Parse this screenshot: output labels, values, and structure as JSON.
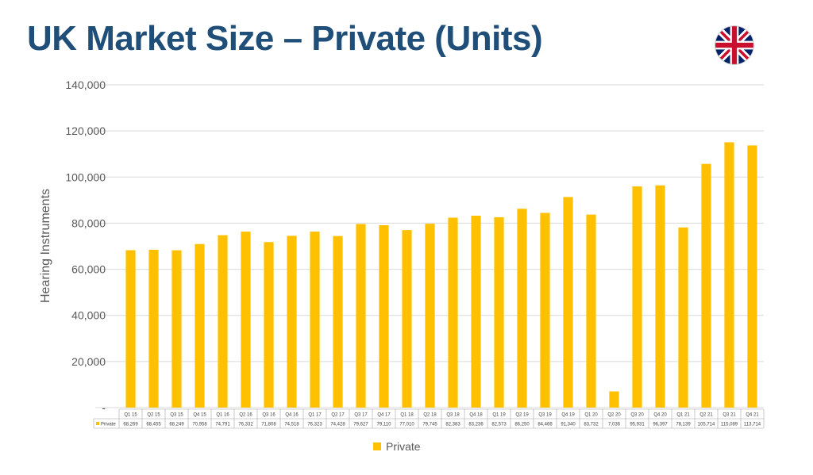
{
  "page": {
    "title": "UK Market Size – Private (Units)"
  },
  "colors": {
    "bar": "#ffc000",
    "grid": "#d9d9d9",
    "title": "#1f4e79"
  },
  "icons": {
    "flag": "uk-flag-icon"
  },
  "chart_data": {
    "type": "bar",
    "title": "UK Market Size – Private (Units)",
    "ylabel": "Hearing Instruments",
    "xlabel": "",
    "ylim": [
      0,
      140000
    ],
    "yticks": [
      0,
      20000,
      40000,
      60000,
      80000,
      100000,
      120000,
      140000
    ],
    "ytick_labels": [
      "-",
      "20,000",
      "40,000",
      "60,000",
      "80,000",
      "100,000",
      "120,000",
      "140,000"
    ],
    "grid": true,
    "legend_position": "bottom",
    "categories": [
      "Q1 15",
      "Q2 15",
      "Q3 15",
      "Q4 15",
      "Q1 16",
      "Q2 16",
      "Q3 16",
      "Q4 16",
      "Q1 17",
      "Q2 17",
      "Q3 17",
      "Q4 17",
      "Q1 18",
      "Q2 18",
      "Q3 18",
      "Q4 18",
      "Q1 19",
      "Q2 19",
      "Q3 19",
      "Q4 19",
      "Q1 20",
      "Q2 20",
      "Q3 20",
      "Q4 20",
      "Q1 21",
      "Q2 21",
      "Q3 21",
      "Q4 21"
    ],
    "series": [
      {
        "name": "Private",
        "values": [
          68269,
          68455,
          68249,
          70958,
          74791,
          76332,
          71808,
          74518,
          76323,
          74428,
          79627,
          79110,
          77010,
          79745,
          82383,
          83236,
          82573,
          86250,
          84466,
          91340,
          83732,
          7036,
          95931,
          96397,
          78139,
          105714,
          115089,
          113714
        ],
        "value_labels": [
          "68,269",
          "68,455",
          "68,249",
          "70,958",
          "74,791",
          "76,332",
          "71,808",
          "74,518",
          "76,323",
          "74,428",
          "79,627",
          "79,110",
          "77,010",
          "79,745",
          "82,383",
          "83,236",
          "82,573",
          "86,250",
          "84,466",
          "91,340",
          "83,732",
          "7,036",
          "95,931",
          "96,397",
          "78,139",
          "105,714",
          "115,089",
          "113,714"
        ]
      }
    ]
  }
}
